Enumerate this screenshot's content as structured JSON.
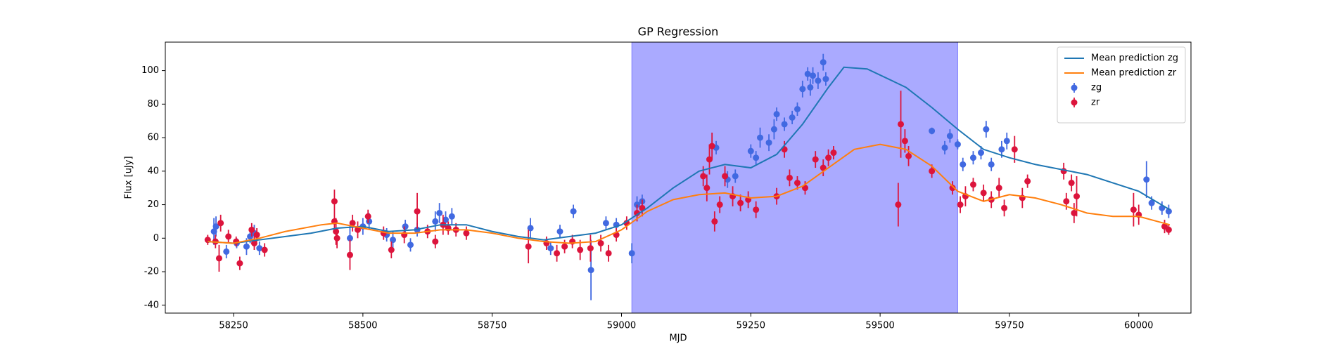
{
  "chart_data": {
    "type": "line",
    "title": "GP Regression",
    "x_label": "MJD",
    "y_label": "Flux [uJy]",
    "xlim": [
      58118,
      60101
    ],
    "ylim": [
      -44.7,
      117
    ],
    "xticks": [
      58250,
      58500,
      58750,
      59000,
      59250,
      59500,
      59750,
      60000
    ],
    "yticks": [
      -40,
      -20,
      0,
      20,
      40,
      60,
      80,
      100
    ],
    "span": [
      59020,
      59650
    ],
    "span_color": "#aaaaff",
    "legend": "upper right",
    "series": [
      {
        "name": "Mean prediction zg",
        "type": "line",
        "color": "#1f77b4",
        "x": [
          58200,
          58250,
          58300,
          58400,
          58450,
          58500,
          58550,
          58600,
          58650,
          58700,
          58750,
          58800,
          58850,
          58900,
          58950,
          59000,
          59050,
          59100,
          59150,
          59200,
          59250,
          59300,
          59350,
          59400,
          59430,
          59475,
          59550,
          59600,
          59650,
          59700,
          59750,
          59800,
          59900,
          60000,
          60060
        ],
        "values": [
          -2,
          -3,
          -1,
          3,
          6,
          7,
          4,
          5,
          8,
          8,
          4,
          1,
          -1,
          1,
          3,
          8,
          18,
          30,
          40,
          44,
          42,
          50,
          68,
          90,
          102,
          101,
          90,
          78,
          65,
          53,
          48,
          44,
          38,
          28,
          17
        ]
      },
      {
        "name": "Mean prediction zr",
        "type": "line",
        "color": "#ff7f0e",
        "x": [
          58200,
          58250,
          58300,
          58350,
          58420,
          58450,
          58500,
          58550,
          58600,
          58650,
          58700,
          58750,
          58800,
          58850,
          58900,
          58950,
          59000,
          59050,
          59100,
          59150,
          59200,
          59250,
          59300,
          59350,
          59400,
          59450,
          59500,
          59550,
          59600,
          59650,
          59700,
          59750,
          59800,
          59850,
          59900,
          59950,
          60000,
          60060
        ],
        "values": [
          -2,
          -3,
          0,
          4,
          8,
          9,
          6,
          3,
          3,
          5,
          5,
          3,
          0,
          -2,
          -3,
          -2,
          5,
          16,
          23,
          26,
          27,
          24,
          25,
          31,
          42,
          53,
          56,
          53,
          43,
          28,
          22,
          26,
          24,
          20,
          15,
          13,
          13,
          8
        ]
      },
      {
        "name": "zg",
        "type": "errorbar",
        "color": "#4169e1",
        "x": [
          58212,
          58216,
          58236,
          58256,
          58275,
          58282,
          58290,
          58300,
          58475,
          58500,
          58512,
          58546,
          58558,
          58582,
          58592,
          58605,
          58640,
          58648,
          58660,
          58672,
          58824,
          58863,
          58881,
          58907,
          58941,
          58970,
          58990,
          59020,
          59030,
          59040,
          59183,
          59205,
          59220,
          59250,
          59260,
          59268,
          59285,
          59295,
          59300,
          59315,
          59330,
          59340,
          59350,
          59360,
          59365,
          59370,
          59380,
          59390,
          59395,
          59600,
          59625,
          59635,
          59650,
          59660,
          59680,
          59695,
          59705,
          59715,
          59735,
          59745,
          60015,
          60025,
          60045,
          60058
        ],
        "values": [
          4,
          7,
          -8,
          -3,
          -5,
          1,
          3,
          -6,
          0,
          7,
          10,
          2,
          -1,
          7,
          -4,
          5,
          10,
          15,
          11,
          13,
          6,
          -6,
          4,
          16,
          -19,
          9,
          8,
          -9,
          20,
          22,
          54,
          35,
          37,
          52,
          48,
          60,
          57,
          65,
          74,
          68,
          72,
          77,
          89,
          98,
          90,
          97,
          94,
          105,
          95,
          64,
          54,
          61,
          56,
          44,
          48,
          51,
          65,
          44,
          53,
          58,
          35,
          21,
          18,
          16
        ],
        "errors": [
          8,
          6,
          4,
          3,
          5,
          4,
          5,
          4,
          8,
          5,
          5,
          4,
          5,
          4,
          4,
          4,
          6,
          6,
          5,
          5,
          6,
          4,
          4,
          4,
          18,
          4,
          4,
          6,
          5,
          4,
          4,
          5,
          4,
          4,
          4,
          6,
          5,
          6,
          4,
          4,
          4,
          4,
          5,
          4,
          5,
          5,
          5,
          5,
          4,
          2,
          4,
          4,
          3,
          4,
          4,
          4,
          5,
          4,
          5,
          5,
          11,
          4,
          4,
          4
        ]
      },
      {
        "name": "zr",
        "type": "errorbar",
        "color": "#dc143c",
        "x": [
          58200,
          58215,
          58222,
          58225,
          58240,
          58255,
          58262,
          58285,
          58290,
          58295,
          58310,
          58445,
          58445,
          58448,
          58450,
          58475,
          58480,
          58490,
          58510,
          58540,
          58555,
          58580,
          58605,
          58625,
          58640,
          58655,
          58665,
          58680,
          58700,
          58820,
          58855,
          58875,
          58890,
          58905,
          58920,
          58940,
          58960,
          58975,
          58990,
          59010,
          59030,
          59040,
          59158,
          59165,
          59170,
          59175,
          59180,
          59190,
          59200,
          59215,
          59230,
          59245,
          59260,
          59300,
          59315,
          59325,
          59340,
          59355,
          59375,
          59390,
          59400,
          59410,
          59535,
          59540,
          59548,
          59555,
          59600,
          59640,
          59655,
          59665,
          59680,
          59700,
          59715,
          59730,
          59740,
          59760,
          59775,
          59785,
          59855,
          59860,
          59870,
          59875,
          59880,
          59990,
          60000,
          60050,
          60058
        ],
        "values": [
          -1,
          -2,
          -12,
          9,
          1,
          -2,
          -15,
          5,
          -3,
          2,
          -7,
          22,
          10,
          4,
          0,
          -10,
          9,
          5,
          13,
          3,
          -7,
          2,
          16,
          4,
          -2,
          8,
          6,
          5,
          3,
          -5,
          -3,
          -9,
          -5,
          -2,
          -7,
          -6,
          -3,
          -9,
          2,
          9,
          15,
          18,
          37,
          30,
          47,
          55,
          10,
          20,
          37,
          25,
          21,
          23,
          17,
          25,
          53,
          36,
          33,
          30,
          47,
          42,
          48,
          51,
          20,
          68,
          58,
          49,
          40,
          30,
          20,
          25,
          32,
          27,
          23,
          30,
          18,
          53,
          24,
          34,
          40,
          22,
          33,
          15,
          25,
          17,
          14,
          7,
          5
        ],
        "errors": [
          3,
          4,
          8,
          5,
          4,
          3,
          4,
          4,
          4,
          4,
          4,
          7,
          5,
          8,
          6,
          9,
          5,
          5,
          4,
          4,
          5,
          5,
          11,
          4,
          4,
          6,
          4,
          4,
          4,
          10,
          4,
          5,
          4,
          4,
          6,
          8,
          5,
          5,
          4,
          4,
          5,
          5,
          6,
          8,
          9,
          8,
          6,
          5,
          6,
          6,
          5,
          5,
          5,
          5,
          5,
          5,
          4,
          4,
          5,
          5,
          5,
          4,
          13,
          20,
          7,
          6,
          4,
          4,
          5,
          6,
          4,
          5,
          5,
          6,
          5,
          8,
          6,
          4,
          5,
          5,
          5,
          6,
          12,
          10,
          6,
          4,
          3
        ]
      }
    ]
  }
}
